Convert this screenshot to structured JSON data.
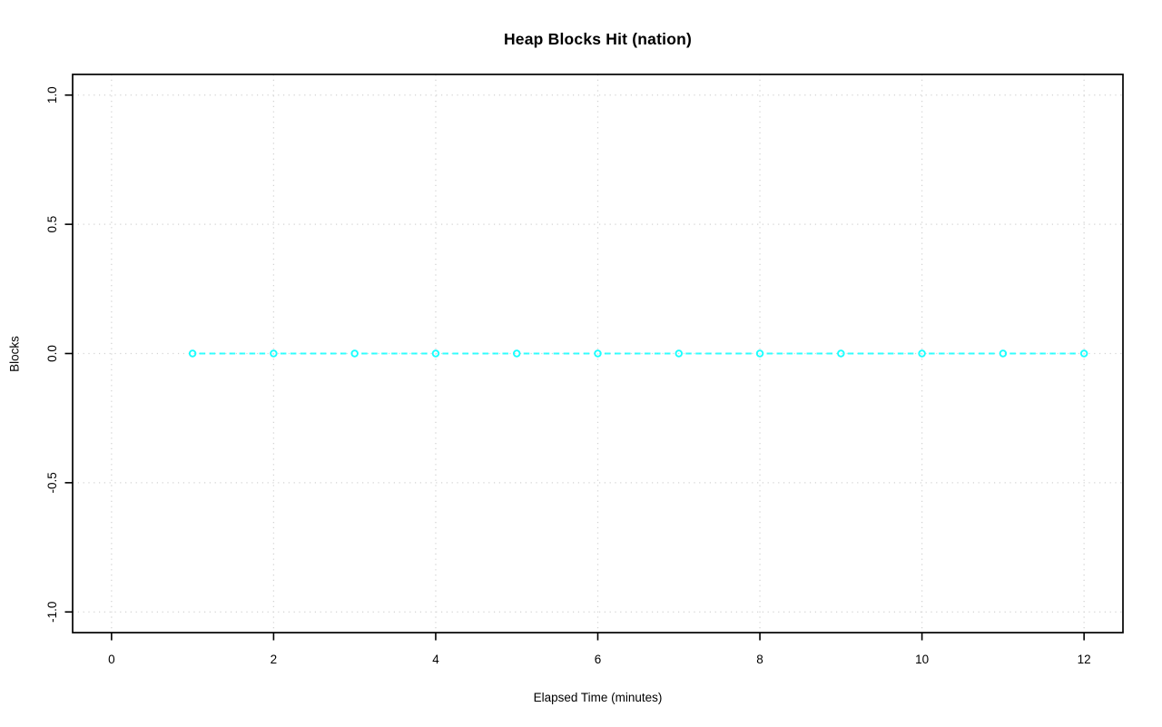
{
  "chart_data": {
    "type": "line",
    "title": "Heap Blocks Hit (nation)",
    "xlabel": "Elapsed Time (minutes)",
    "ylabel": "Blocks",
    "x": [
      1,
      2,
      3,
      4,
      5,
      6,
      7,
      8,
      9,
      10,
      11,
      12
    ],
    "y": [
      0,
      0,
      0,
      0,
      0,
      0,
      0,
      0,
      0,
      0,
      0,
      0
    ],
    "xlim": [
      -0.48,
      12.48
    ],
    "ylim": [
      -1.08,
      1.08
    ],
    "xtick_values": [
      0,
      2,
      4,
      6,
      8,
      10,
      12
    ],
    "xtick_labels": [
      "0",
      "2",
      "4",
      "6",
      "8",
      "10",
      "12"
    ],
    "ytick_values": [
      -1.0,
      -0.5,
      0.0,
      0.5,
      1.0
    ],
    "ytick_labels": [
      "-1.0",
      "-0.5",
      "0.0",
      "0.5",
      "1.0"
    ],
    "grid": true,
    "legend": "none",
    "style": {
      "series_color": "#00FFFF",
      "grid_color": "#D3D3D3",
      "axis_color": "#000000",
      "background": "#FFFFFF",
      "line_style": "dashed",
      "marker": "open-circle",
      "plot_type": "points-and-dashed-segments"
    }
  }
}
